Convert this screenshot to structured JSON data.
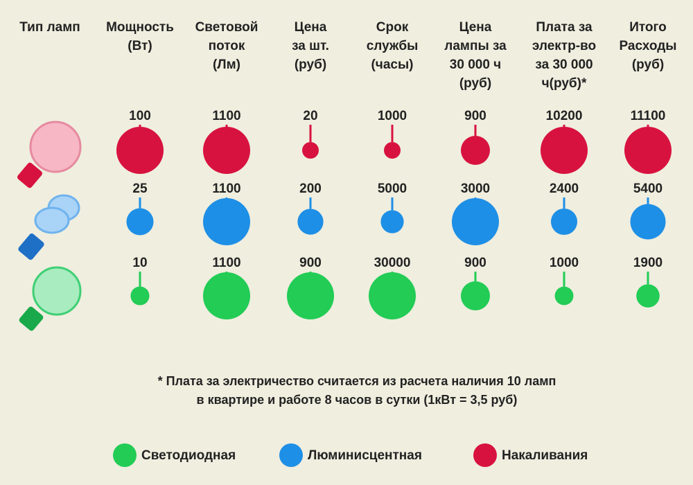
{
  "chart_data": {
    "type": "bubble",
    "row_header": "Тип ламп",
    "categories": [
      "Мощность\n(Вт)",
      "Световой\nпоток\n(Лм)",
      "Цена\nза шт.\n(руб)",
      "Срок\nслужбы\n(часы)",
      "Цена\nлампы за\n30 000 ч\n(руб)",
      "Плата за\nэлектр-во\nза 30 000\nч(руб)*",
      "Итого\nРасходы\n(руб)"
    ],
    "series": [
      {
        "name": "Накаливания",
        "color": "#d8123f",
        "values": [
          100,
          1100,
          20,
          1000,
          900,
          10200,
          11100
        ]
      },
      {
        "name": "Люминисцентная",
        "color": "#1e8fe6",
        "values": [
          25,
          1100,
          200,
          5000,
          3000,
          2400,
          5400
        ]
      },
      {
        "name": "Светодиодная",
        "color": "#22cc55",
        "values": [
          10,
          1100,
          900,
          30000,
          900,
          1000,
          1900
        ]
      }
    ],
    "footnote": [
      "* Плата за электричество считается из расчета наличия 10 ламп",
      "в квартире и работе 8 часов в сутки (1кВт = 3,5 руб)"
    ]
  }
}
